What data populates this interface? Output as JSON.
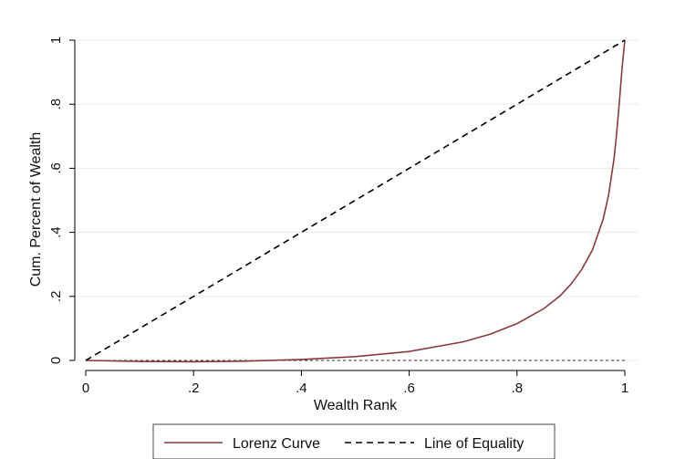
{
  "chart_data": {
    "type": "line",
    "title": "",
    "xlabel": "Wealth Rank",
    "ylabel": "Cum. Percent of Wealth",
    "xlim": [
      0,
      1
    ],
    "ylim": [
      0,
      1
    ],
    "xticks": [
      "0",
      ".2",
      ".4",
      ".6",
      ".8",
      "1"
    ],
    "yticks": [
      "0",
      ".2",
      ".4",
      ".6",
      ".8",
      "1"
    ],
    "grid": "horizontal",
    "legend_position": "bottom",
    "series": [
      {
        "name": "Lorenz Curve",
        "style": "solid",
        "color": "#8b3a3a",
        "x": [
          0,
          0.1,
          0.2,
          0.3,
          0.4,
          0.5,
          0.6,
          0.7,
          0.75,
          0.8,
          0.85,
          0.88,
          0.9,
          0.92,
          0.94,
          0.96,
          0.97,
          0.98,
          0.985,
          0.99,
          0.995,
          1
        ],
        "y": [
          0,
          -0.003,
          -0.004,
          -0.002,
          0.003,
          0.012,
          0.028,
          0.058,
          0.082,
          0.115,
          0.162,
          0.202,
          0.238,
          0.284,
          0.345,
          0.442,
          0.518,
          0.63,
          0.712,
          0.81,
          0.915,
          1.0
        ]
      },
      {
        "name": "Line of Equality",
        "style": "dashed",
        "color": "#000000",
        "x": [
          0,
          1
        ],
        "y": [
          0,
          1
        ]
      }
    ]
  }
}
